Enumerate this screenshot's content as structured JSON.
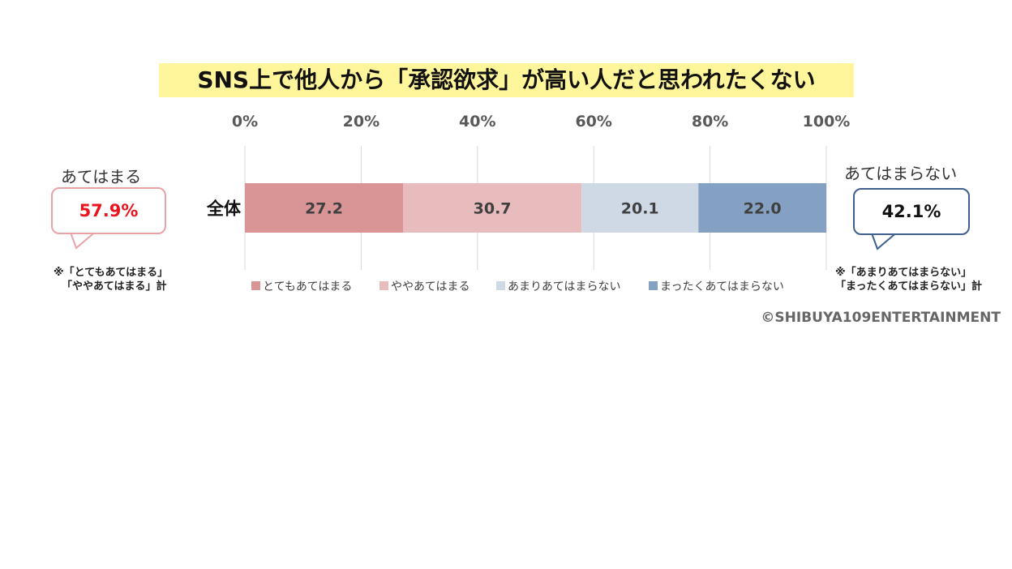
{
  "chart_data": {
    "type": "bar",
    "orientation": "horizontal-stacked-100",
    "title": "SNS上で他人から「承認欲求」が高い人だと思われたくない",
    "categories": [
      "全体"
    ],
    "series": [
      {
        "name": "とてもあてはまる",
        "values": [
          27.2
        ],
        "color": "#d99496",
        "label": "27.2"
      },
      {
        "name": "ややあてはまる",
        "values": [
          30.7
        ],
        "color": "#e8bbbd",
        "label": "30.7"
      },
      {
        "name": "あまりあてはまらない",
        "values": [
          20.1
        ],
        "color": "#cfd9e6",
        "label": "20.1"
      },
      {
        "name": "まったくあてはまらない",
        "values": [
          22.0
        ],
        "color": "#84a1c3",
        "label": "22.0"
      }
    ],
    "x_ticks": [
      "0%",
      "20%",
      "40%",
      "60%",
      "80%",
      "100%"
    ],
    "xlim": [
      0,
      100
    ],
    "grid": true,
    "legend_position": "bottom"
  },
  "annotations": {
    "left": {
      "label": "あてはまる",
      "value": "57.9%",
      "note_line1": "※「とてもあてはまる」",
      "note_line2": "「ややあてはまる」計"
    },
    "right": {
      "label": "あてはまらない",
      "value": "42.1%",
      "note_line1": "※「あまりあてはまらない」",
      "note_line2": "「まったくあてはまらない」計"
    }
  },
  "credit": "©SHIBUYA109ENTERTAINMENT"
}
